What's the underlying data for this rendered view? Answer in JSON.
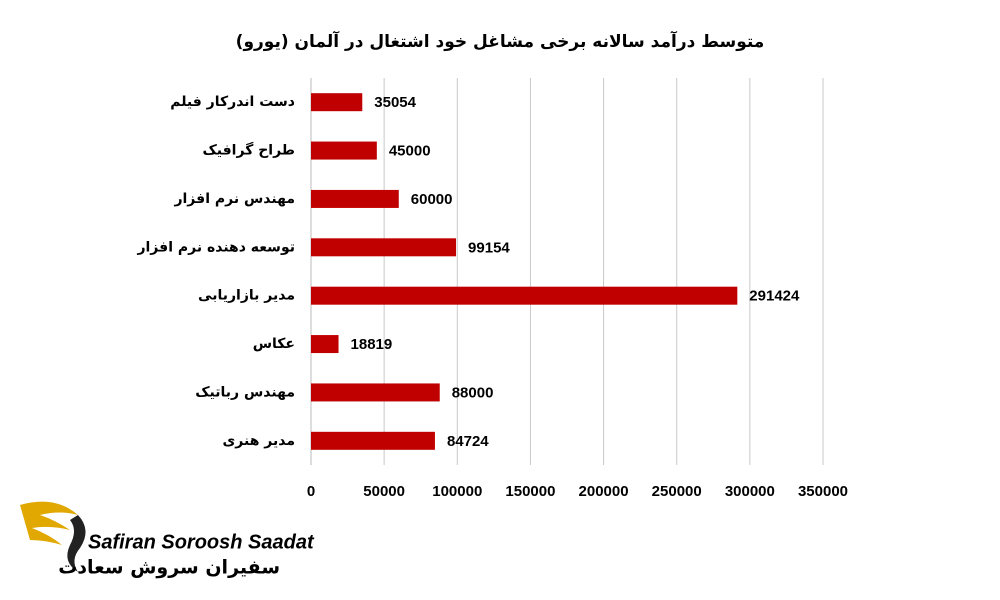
{
  "chart_data": {
    "type": "bar",
    "orientation": "horizontal",
    "title": "متوسط درآمد سالانه برخی مشاغل خود اشتغال در آلمان (یورو)",
    "categories": [
      "دست اندرکار فیلم",
      "طراح گرافیک",
      "مهندس نرم افزار",
      "توسعه دهنده نرم افزار",
      "مدیر بازاریابی",
      "عکاس",
      "مهندس رباتیک",
      "مدیر هنری"
    ],
    "values": [
      35054,
      45000,
      60000,
      99154,
      291424,
      18819,
      88000,
      84724
    ],
    "color": "#c00000",
    "xlim": [
      0,
      350000
    ],
    "xticks": [
      0,
      50000,
      100000,
      150000,
      200000,
      250000,
      300000,
      350000
    ],
    "grid": true
  },
  "logo": {
    "name": "Safiran Soroosh Saadat",
    "name_fa": "سفیران سروش سعادت"
  }
}
